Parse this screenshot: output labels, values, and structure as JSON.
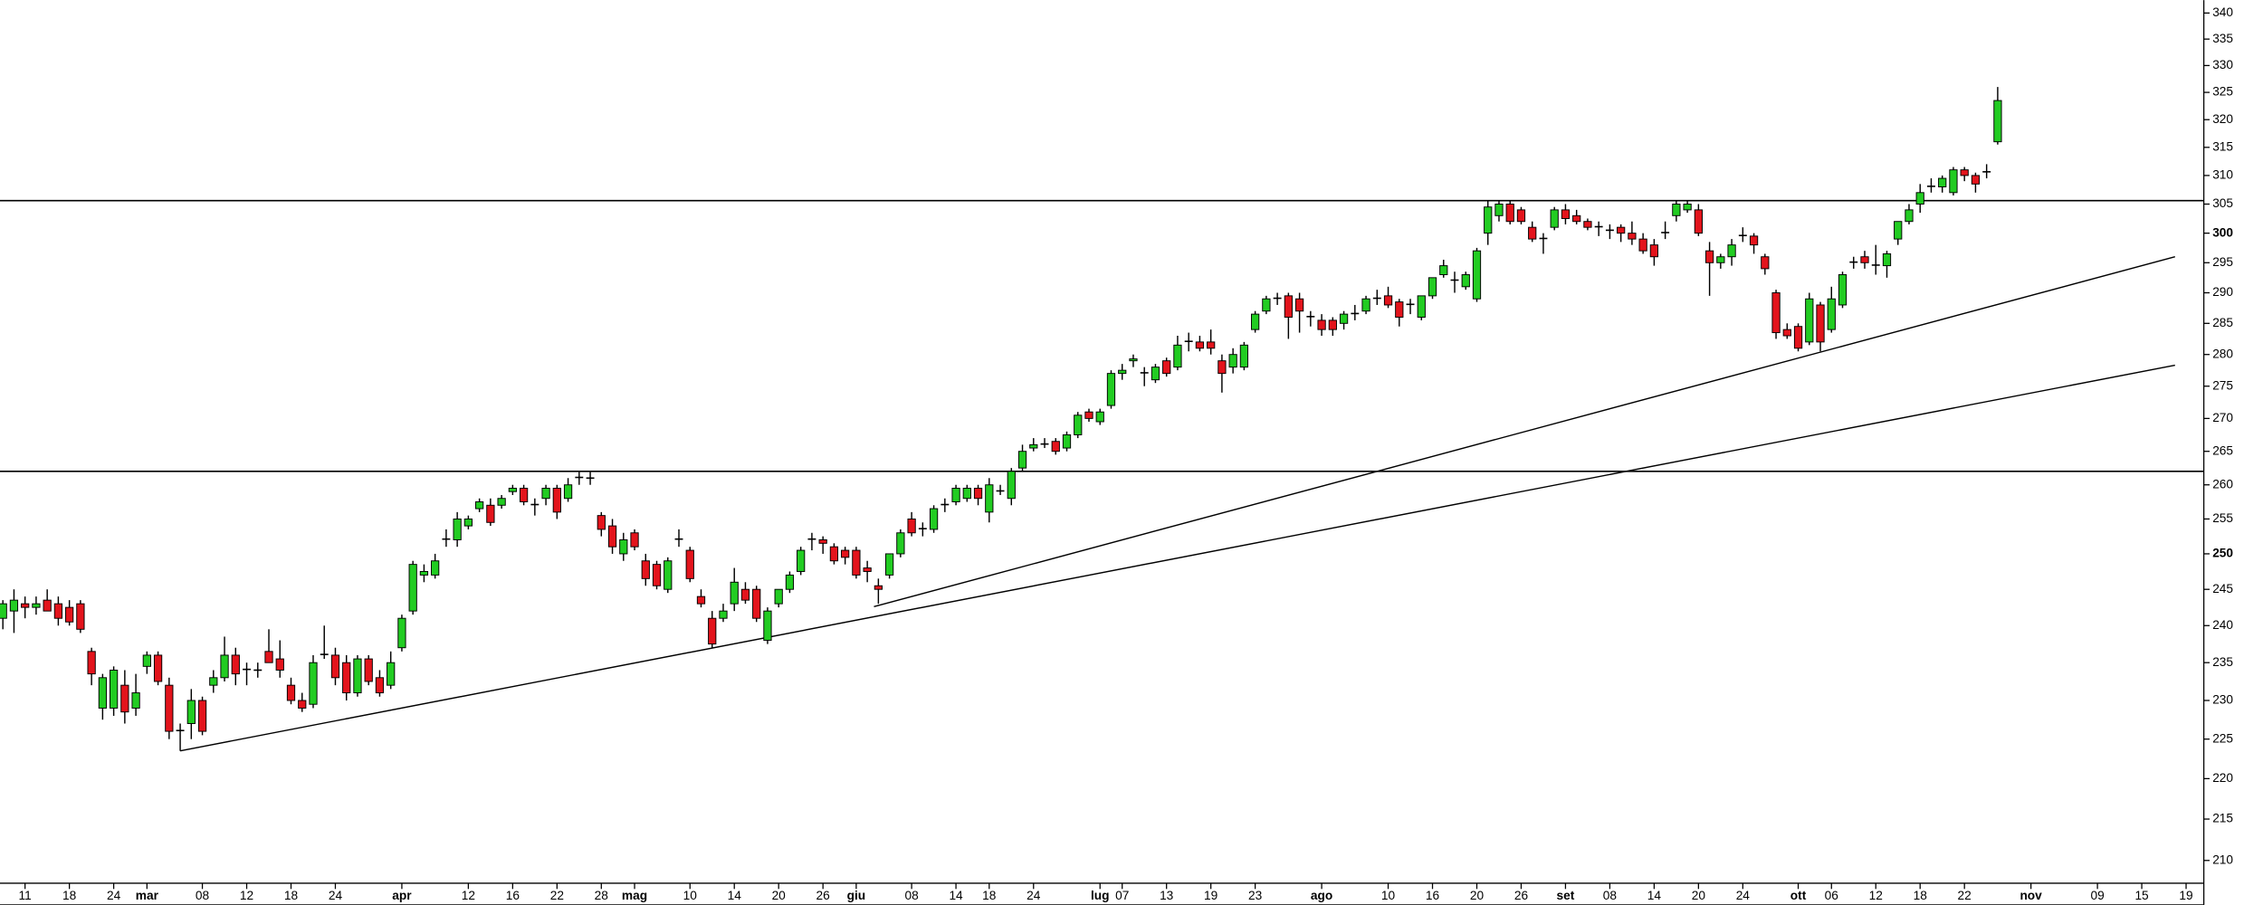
{
  "chart_data": {
    "type": "candlestick",
    "log_scale": true,
    "ylim": [
      207.3,
      342.5
    ],
    "yticks": [
      210,
      215,
      220,
      225,
      230,
      235,
      240,
      245,
      250,
      255,
      260,
      265,
      270,
      275,
      280,
      285,
      290,
      295,
      300,
      305,
      310,
      315,
      320,
      325,
      330,
      335,
      340
    ],
    "bold_ticks_every": 50,
    "xlim": [
      -0.26,
      198.6
    ],
    "xticks": [
      {
        "value": 2,
        "label": "11"
      },
      {
        "value": 6,
        "label": "18"
      },
      {
        "value": 10,
        "label": "24"
      },
      {
        "value": 13,
        "label": "mar"
      },
      {
        "value": 18,
        "label": "08"
      },
      {
        "value": 22,
        "label": "12"
      },
      {
        "value": 26,
        "label": "18"
      },
      {
        "value": 30,
        "label": "24"
      },
      {
        "value": 36,
        "label": "apr"
      },
      {
        "value": 42,
        "label": "12"
      },
      {
        "value": 46,
        "label": "16"
      },
      {
        "value": 50,
        "label": "22"
      },
      {
        "value": 54,
        "label": "28"
      },
      {
        "value": 57,
        "label": "mag"
      },
      {
        "value": 62,
        "label": "10"
      },
      {
        "value": 66,
        "label": "14"
      },
      {
        "value": 70,
        "label": "20"
      },
      {
        "value": 74,
        "label": "26"
      },
      {
        "value": 77,
        "label": "giu"
      },
      {
        "value": 82,
        "label": "08"
      },
      {
        "value": 86,
        "label": "14"
      },
      {
        "value": 89,
        "label": "18"
      },
      {
        "value": 93,
        "label": "24"
      },
      {
        "value": 99,
        "label": "lug"
      },
      {
        "value": 101,
        "label": "07"
      },
      {
        "value": 105,
        "label": "13"
      },
      {
        "value": 109,
        "label": "19"
      },
      {
        "value": 113,
        "label": "23"
      },
      {
        "value": 119,
        "label": "ago"
      },
      {
        "value": 125,
        "label": "10"
      },
      {
        "value": 129,
        "label": "16"
      },
      {
        "value": 133,
        "label": "20"
      },
      {
        "value": 137,
        "label": "26"
      },
      {
        "value": 141,
        "label": "set"
      },
      {
        "value": 145,
        "label": "08"
      },
      {
        "value": 149,
        "label": "14"
      },
      {
        "value": 153,
        "label": "20"
      },
      {
        "value": 157,
        "label": "24"
      },
      {
        "value": 162,
        "label": "ott"
      },
      {
        "value": 165,
        "label": "06"
      },
      {
        "value": 169,
        "label": "12"
      },
      {
        "value": 173,
        "label": "18"
      },
      {
        "value": 177,
        "label": "22"
      },
      {
        "value": 183,
        "label": "nov"
      },
      {
        "value": 189,
        "label": "09"
      },
      {
        "value": 193,
        "label": "15"
      },
      {
        "value": 197,
        "label": "19"
      }
    ],
    "up_color": "#22cc22",
    "down_color": "#e3141c",
    "ohlc": [
      [
        241,
        243.5,
        239.5,
        243
      ],
      [
        242,
        245,
        239,
        243.5
      ],
      [
        243,
        244,
        241,
        242.5
      ],
      [
        242.5,
        244,
        241.5,
        243
      ],
      [
        243.5,
        245,
        242,
        242
      ],
      [
        243,
        244,
        240,
        241
      ],
      [
        242.5,
        243.5,
        240,
        240.5
      ],
      [
        243,
        243.5,
        239,
        239.5
      ],
      [
        236.5,
        237,
        232,
        233.5
      ],
      [
        229,
        233.5,
        227.5,
        233
      ],
      [
        229,
        234.5,
        228,
        234
      ],
      [
        232,
        234,
        227,
        228.5
      ],
      [
        229,
        233.5,
        228,
        231
      ],
      [
        234.5,
        236.5,
        233.5,
        236
      ],
      [
        236,
        236.5,
        232,
        232.5
      ],
      [
        232,
        233,
        225,
        226
      ],
      [
        226,
        227,
        223.5,
        226.2
      ],
      [
        227,
        231.5,
        225,
        230
      ],
      [
        230,
        230.5,
        225.5,
        226
      ],
      [
        232,
        234,
        231,
        233
      ],
      [
        233,
        238.5,
        232.5,
        236
      ],
      [
        236,
        237,
        232,
        233.5
      ],
      [
        234,
        235,
        232,
        234.2
      ],
      [
        234,
        235,
        233,
        234
      ],
      [
        236.5,
        239.5,
        235,
        235
      ],
      [
        235.5,
        238,
        233,
        234
      ],
      [
        232,
        233,
        229.5,
        230
      ],
      [
        230,
        231,
        228.5,
        229
      ],
      [
        229.5,
        236,
        229,
        235
      ],
      [
        236,
        240,
        235.5,
        236.2
      ],
      [
        236,
        237,
        232,
        233
      ],
      [
        235,
        236,
        230,
        231
      ],
      [
        231,
        236,
        230.5,
        235.5
      ],
      [
        235.5,
        236,
        232,
        232.5
      ],
      [
        233,
        234,
        230.5,
        231
      ],
      [
        232,
        236.5,
        231.5,
        235
      ],
      [
        237,
        241.5,
        236.5,
        241
      ],
      [
        242,
        249,
        241.5,
        248.5
      ],
      [
        247,
        248.5,
        246,
        247.5
      ],
      [
        247,
        250,
        246.5,
        249
      ],
      [
        252,
        253.5,
        251,
        252.2
      ],
      [
        252,
        256,
        251,
        255
      ],
      [
        254,
        255.5,
        253.5,
        255
      ],
      [
        256.5,
        258,
        256,
        257.5
      ],
      [
        257,
        258,
        254,
        254.5
      ],
      [
        257,
        258.5,
        256.5,
        258
      ],
      [
        259,
        260,
        258.5,
        259.5
      ],
      [
        259.5,
        260,
        257,
        257.5
      ],
      [
        257,
        258,
        255.5,
        257.2
      ],
      [
        258,
        260,
        257,
        259.5
      ],
      [
        259.5,
        260,
        255,
        256
      ],
      [
        258,
        261,
        257.5,
        260
      ],
      [
        261,
        262,
        260,
        261.2
      ],
      [
        261,
        262,
        260,
        261
      ],
      [
        255.5,
        256,
        252.5,
        253.5
      ],
      [
        254,
        255,
        250,
        251
      ],
      [
        250,
        253,
        249,
        252
      ],
      [
        253,
        253.5,
        250.5,
        251
      ],
      [
        249,
        250,
        245.5,
        246.5
      ],
      [
        248.5,
        249,
        245,
        245.5
      ],
      [
        245,
        249.5,
        244.5,
        249
      ],
      [
        252,
        253.5,
        251,
        252.2
      ],
      [
        250.5,
        251,
        246,
        246.5
      ],
      [
        244,
        245,
        242.5,
        243
      ],
      [
        241,
        242,
        237,
        237.5
      ],
      [
        241,
        243,
        240.5,
        242
      ],
      [
        243,
        248,
        242,
        246
      ],
      [
        245,
        246,
        243,
        243.5
      ],
      [
        245,
        245.5,
        240.5,
        241
      ],
      [
        238,
        242.5,
        237.5,
        242
      ],
      [
        243,
        245,
        242.5,
        245
      ],
      [
        245,
        247.5,
        244.5,
        247
      ],
      [
        247.5,
        251,
        247,
        250.5
      ],
      [
        252,
        253,
        250.5,
        252.2
      ],
      [
        252,
        252.5,
        250,
        251.5
      ],
      [
        251,
        251.5,
        248.5,
        249
      ],
      [
        250.5,
        251,
        248.5,
        249.5
      ],
      [
        250.5,
        251,
        246.5,
        247
      ],
      [
        248,
        249,
        246,
        247.5
      ],
      [
        245.5,
        246.5,
        243,
        245
      ],
      [
        247,
        250,
        246.5,
        250
      ],
      [
        250,
        253.5,
        249.5,
        253
      ],
      [
        255,
        256,
        252.5,
        253
      ],
      [
        253.5,
        254.5,
        252.5,
        253.7
      ],
      [
        253.5,
        257,
        253,
        256.5
      ],
      [
        257,
        258,
        256,
        257.2
      ],
      [
        257.5,
        260,
        257,
        259.5
      ],
      [
        258,
        260,
        257.5,
        259.5
      ],
      [
        259.5,
        260,
        257,
        258
      ],
      [
        256,
        261,
        254.5,
        260
      ],
      [
        259,
        260,
        258.5,
        259.2
      ],
      [
        258,
        262.5,
        257,
        262
      ],
      [
        262.5,
        266,
        262,
        265
      ],
      [
        265.5,
        267,
        265,
        266
      ],
      [
        266,
        267,
        265.5,
        266.2
      ],
      [
        266.5,
        267,
        264.5,
        265
      ],
      [
        265.5,
        268,
        265,
        267.5
      ],
      [
        267.5,
        271,
        267,
        270.5
      ],
      [
        271,
        271.5,
        269.5,
        270
      ],
      [
        269.5,
        271.5,
        269,
        271
      ],
      [
        272,
        277.5,
        271.5,
        277
      ],
      [
        277,
        278.5,
        276,
        277.5
      ],
      [
        279,
        280,
        278,
        279.3
      ],
      [
        277,
        278,
        275,
        277.2
      ],
      [
        276,
        278.5,
        275.5,
        278
      ],
      [
        279,
        279.5,
        276.5,
        277
      ],
      [
        278,
        283,
        277.5,
        281.5
      ],
      [
        282,
        283.5,
        280.5,
        282.2
      ],
      [
        282,
        283,
        280.5,
        281
      ],
      [
        282,
        284,
        280,
        281
      ],
      [
        279,
        280,
        274,
        277
      ],
      [
        278,
        281,
        277,
        280
      ],
      [
        278,
        282,
        277.5,
        281.5
      ],
      [
        284,
        287,
        283.5,
        286.5
      ],
      [
        287,
        289.5,
        286.5,
        289
      ],
      [
        289,
        290,
        288,
        289.2
      ],
      [
        289.5,
        290,
        282.5,
        286
      ],
      [
        289,
        290,
        283.5,
        287
      ],
      [
        286,
        287,
        284.5,
        286.2
      ],
      [
        285.5,
        286.5,
        283,
        284
      ],
      [
        285.5,
        286,
        283,
        284
      ],
      [
        285,
        287,
        284,
        286.5
      ],
      [
        286.5,
        288,
        285.5,
        286.7
      ],
      [
        287,
        289.5,
        286.5,
        289
      ],
      [
        289,
        290.5,
        288,
        289.2
      ],
      [
        289.5,
        291,
        287.5,
        288
      ],
      [
        288.5,
        289,
        284.5,
        286
      ],
      [
        288,
        289,
        286.5,
        288.2
      ],
      [
        286,
        289.5,
        285.5,
        289.5
      ],
      [
        289.5,
        292.5,
        289,
        292.5
      ],
      [
        293,
        295.5,
        292.5,
        294.5
      ],
      [
        292,
        293.5,
        290,
        292.2
      ],
      [
        291,
        293.5,
        290.5,
        293
      ],
      [
        289,
        297.5,
        288.5,
        297
      ],
      [
        300,
        305.5,
        298,
        304.5
      ],
      [
        303,
        305.5,
        302,
        305
      ],
      [
        305,
        305.5,
        301.5,
        302
      ],
      [
        304,
        304.5,
        301.5,
        302
      ],
      [
        301,
        302,
        298.5,
        299
      ],
      [
        299,
        300,
        296.5,
        299.2
      ],
      [
        301,
        304.5,
        300.5,
        304
      ],
      [
        304,
        305,
        301.5,
        302.5
      ],
      [
        303,
        304,
        301.5,
        302
      ],
      [
        302,
        302.5,
        300.5,
        301
      ],
      [
        301,
        302,
        299.5,
        301.2
      ],
      [
        300.5,
        301.5,
        299,
        300.5
      ],
      [
        301,
        301.5,
        298.5,
        300
      ],
      [
        300,
        302,
        298,
        299
      ],
      [
        299,
        300,
        296.5,
        297
      ],
      [
        298,
        299,
        294.5,
        296
      ],
      [
        300,
        302,
        299,
        300.2
      ],
      [
        303,
        305.5,
        302,
        305
      ],
      [
        304,
        305.5,
        303.5,
        305
      ],
      [
        304,
        305,
        299.5,
        300
      ],
      [
        297,
        298.5,
        289.5,
        295
      ],
      [
        295,
        296.5,
        294,
        296
      ],
      [
        296,
        299,
        294.5,
        298
      ],
      [
        299.5,
        301,
        298.5,
        299.7
      ],
      [
        299.5,
        300,
        296.5,
        298
      ],
      [
        296,
        296.5,
        293,
        294
      ],
      [
        290,
        290.5,
        282.5,
        283.5
      ],
      [
        284,
        285,
        282.5,
        283
      ],
      [
        284.5,
        285,
        280.5,
        281
      ],
      [
        282,
        290,
        281.5,
        289
      ],
      [
        288,
        288.5,
        280.5,
        282
      ],
      [
        284,
        291,
        283.5,
        289
      ],
      [
        288,
        293.5,
        287.5,
        293
      ],
      [
        295,
        296,
        294,
        295.2
      ],
      [
        296,
        297,
        294,
        295
      ],
      [
        294.5,
        298,
        293,
        294.7
      ],
      [
        294.5,
        297,
        292.5,
        296.5
      ],
      [
        299,
        302,
        298,
        302
      ],
      [
        302,
        305,
        301.5,
        304
      ],
      [
        305,
        308.5,
        303.5,
        307
      ],
      [
        308,
        309.5,
        307,
        308.2
      ],
      [
        308,
        310,
        307,
        309.5
      ],
      [
        307,
        311.5,
        306.5,
        311
      ],
      [
        311,
        311.5,
        309,
        310
      ],
      [
        310,
        310.5,
        307,
        308.5
      ],
      [
        310.5,
        312,
        309.5,
        310.8
      ],
      [
        316,
        326,
        315.5,
        323.5
      ]
    ],
    "hlines": [
      305.6,
      262
    ],
    "trendlines": [
      {
        "x": [
          16,
          196
        ],
        "y": [
          223.5,
          278.3
        ]
      },
      {
        "x": [
          78.6,
          196
        ],
        "y": [
          242.6,
          296
        ]
      }
    ]
  }
}
